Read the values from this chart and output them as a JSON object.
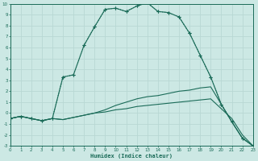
{
  "xlabel": "Humidex (Indice chaleur)",
  "xlim": [
    0,
    23
  ],
  "ylim": [
    -3,
    10
  ],
  "xtick_vals": [
    0,
    1,
    2,
    3,
    4,
    5,
    6,
    7,
    8,
    9,
    10,
    11,
    12,
    13,
    14,
    15,
    16,
    17,
    18,
    19,
    20,
    21,
    22,
    23
  ],
  "ytick_vals": [
    -3,
    -2,
    -1,
    0,
    1,
    2,
    3,
    4,
    5,
    6,
    7,
    8,
    9,
    10
  ],
  "bg_color": "#cce8e4",
  "line_color": "#1a6b58",
  "grid_color": "#b8d8d4",
  "line1_x": [
    0,
    1,
    2,
    3,
    4,
    5,
    6,
    7,
    8,
    9,
    10,
    11,
    12,
    13,
    14,
    15,
    16,
    17,
    18,
    19,
    20,
    21,
    22,
    23
  ],
  "line1_y": [
    -0.5,
    -0.3,
    -0.5,
    -0.7,
    -0.5,
    3.3,
    3.5,
    6.2,
    7.9,
    9.5,
    9.6,
    9.3,
    9.8,
    10.1,
    9.3,
    9.2,
    8.8,
    7.3,
    5.3,
    3.3,
    0.8,
    -0.8,
    -2.3,
    -3.0
  ],
  "line1_dotted": true,
  "line2_x": [
    0,
    1,
    2,
    3,
    4,
    5,
    6,
    7,
    8,
    9,
    10,
    11,
    12,
    13,
    14,
    15,
    16,
    17,
    18,
    19,
    20,
    21,
    22,
    23
  ],
  "line2_y": [
    -0.5,
    -0.3,
    -0.5,
    -0.7,
    -0.5,
    3.3,
    3.5,
    6.2,
    7.9,
    9.5,
    9.6,
    9.3,
    9.8,
    10.1,
    9.3,
    9.2,
    8.8,
    7.3,
    5.3,
    3.3,
    0.8,
    -0.8,
    -2.3,
    -3.0
  ],
  "line3_x": [
    0,
    1,
    2,
    3,
    4,
    5,
    6,
    7,
    8,
    9,
    10,
    11,
    12,
    13,
    14,
    15,
    16,
    17,
    18,
    19,
    20,
    21,
    22,
    23
  ],
  "line3_y": [
    -0.5,
    -0.3,
    -0.5,
    -0.7,
    -0.5,
    -0.6,
    -0.4,
    -0.2,
    0.0,
    0.3,
    0.7,
    1.0,
    1.3,
    1.5,
    1.6,
    1.8,
    2.0,
    2.1,
    2.3,
    2.4,
    0.8,
    -0.8,
    -2.3,
    -3.0
  ],
  "line4_x": [
    0,
    1,
    2,
    3,
    4,
    5,
    6,
    7,
    8,
    9,
    10,
    11,
    12,
    13,
    14,
    15,
    16,
    17,
    18,
    19,
    20,
    21,
    22,
    23
  ],
  "line4_y": [
    -0.5,
    -0.3,
    -0.5,
    -0.7,
    -0.5,
    -0.6,
    -0.4,
    -0.2,
    0.0,
    0.1,
    0.3,
    0.4,
    0.6,
    0.7,
    0.8,
    0.9,
    1.0,
    1.1,
    1.2,
    1.3,
    0.4,
    -0.5,
    -2.0,
    -3.0
  ]
}
